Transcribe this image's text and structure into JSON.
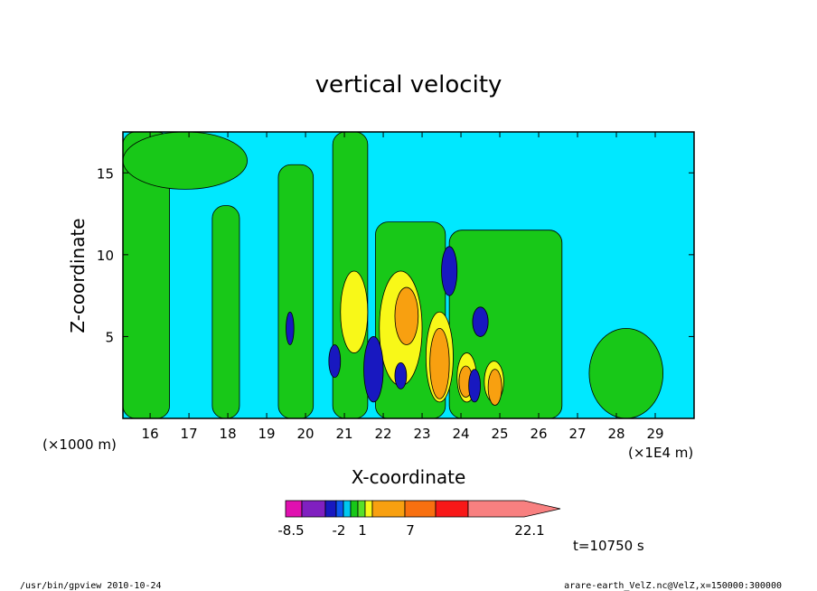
{
  "chart_data": {
    "type": "heatmap",
    "title": "vertical velocity",
    "xlabel": "X-coordinate",
    "ylabel": "Z-coordinate",
    "x_unit": "(×1E4 m)",
    "y_unit": "(×1000 m)",
    "xlim": [
      15.3,
      30.0
    ],
    "ylim": [
      0.0,
      17.5
    ],
    "x_ticks": [
      16,
      17,
      18,
      19,
      20,
      21,
      22,
      23,
      24,
      25,
      26,
      27,
      28,
      29
    ],
    "y_ticks": [
      5,
      10,
      15
    ],
    "grid": false,
    "colorbar": {
      "labels": [
        "-8.5",
        "-2",
        "1",
        "7",
        "22.1"
      ],
      "colors": [
        "#e010b0",
        "#8020c0",
        "#1818c0",
        "#0c58f0",
        "#00c8f0",
        "#18c818",
        "#58e028",
        "#f8f818",
        "#f8a010",
        "#f87010",
        "#f81818",
        "#f88080"
      ],
      "placement": "bottom"
    },
    "background_level_color": "#00e8ff",
    "regions": [
      {
        "level": "green",
        "shape": "band",
        "x": [
          15.3,
          16.5
        ],
        "y": [
          0.0,
          17.5
        ]
      },
      {
        "level": "green",
        "shape": "band",
        "x": [
          17.6,
          18.3
        ],
        "y": [
          0.0,
          13.0
        ]
      },
      {
        "level": "green",
        "shape": "band",
        "x": [
          19.3,
          20.2
        ],
        "y": [
          0.0,
          15.5
        ]
      },
      {
        "level": "green",
        "shape": "band",
        "x": [
          20.7,
          21.6
        ],
        "y": [
          0.0,
          17.5
        ]
      },
      {
        "level": "green",
        "shape": "band",
        "x": [
          21.8,
          23.6
        ],
        "y": [
          0.0,
          12.0
        ]
      },
      {
        "level": "green",
        "shape": "band",
        "x": [
          23.7,
          26.6
        ],
        "y": [
          0.0,
          11.5
        ]
      },
      {
        "level": "green",
        "shape": "blob",
        "x": [
          27.3,
          29.2
        ],
        "y": [
          0.0,
          5.5
        ]
      },
      {
        "level": "green",
        "shape": "blob",
        "x": [
          15.3,
          18.5
        ],
        "y": [
          14.0,
          17.5
        ]
      },
      {
        "level": "yellow",
        "shape": "blob",
        "x": [
          20.9,
          21.6
        ],
        "y": [
          4.0,
          9.0
        ]
      },
      {
        "level": "yellow",
        "shape": "blob",
        "x": [
          21.9,
          23.0
        ],
        "y": [
          2.0,
          9.0
        ]
      },
      {
        "level": "yellow",
        "shape": "blob",
        "x": [
          23.1,
          23.8
        ],
        "y": [
          1.0,
          6.5
        ]
      },
      {
        "level": "yellow",
        "shape": "blob",
        "x": [
          23.9,
          24.4
        ],
        "y": [
          1.0,
          4.0
        ]
      },
      {
        "level": "yellow",
        "shape": "blob",
        "x": [
          24.6,
          25.1
        ],
        "y": [
          1.0,
          3.5
        ]
      },
      {
        "level": "orange",
        "shape": "blob",
        "x": [
          22.3,
          22.9
        ],
        "y": [
          4.5,
          8.0
        ]
      },
      {
        "level": "orange",
        "shape": "blob",
        "x": [
          23.2,
          23.7
        ],
        "y": [
          1.2,
          5.5
        ]
      },
      {
        "level": "orange",
        "shape": "blob",
        "x": [
          23.95,
          24.3
        ],
        "y": [
          1.3,
          3.2
        ]
      },
      {
        "level": "orange",
        "shape": "blob",
        "x": [
          24.7,
          25.05
        ],
        "y": [
          0.8,
          3.0
        ]
      },
      {
        "level": "blue",
        "shape": "blob",
        "x": [
          23.5,
          23.9
        ],
        "y": [
          7.5,
          10.5
        ]
      },
      {
        "level": "blue",
        "shape": "blob",
        "x": [
          21.5,
          22.0
        ],
        "y": [
          1.0,
          5.0
        ]
      },
      {
        "level": "blue",
        "shape": "blob",
        "x": [
          20.6,
          20.9
        ],
        "y": [
          2.5,
          4.5
        ]
      },
      {
        "level": "blue",
        "shape": "blob",
        "x": [
          19.5,
          19.7
        ],
        "y": [
          4.5,
          6.5
        ]
      },
      {
        "level": "blue",
        "shape": "blob",
        "x": [
          24.3,
          24.7
        ],
        "y": [
          5.0,
          6.8
        ]
      },
      {
        "level": "blue",
        "shape": "blob",
        "x": [
          24.2,
          24.5
        ],
        "y": [
          1.0,
          3.0
        ]
      },
      {
        "level": "blue",
        "shape": "blob",
        "x": [
          22.3,
          22.6
        ],
        "y": [
          1.8,
          3.4
        ]
      }
    ],
    "annotation": "t=10750 s"
  },
  "footer": {
    "left": "/usr/bin/gpview  2010-10-24",
    "right": "arare-earth_VelZ.nc@VelZ,x=150000:300000"
  }
}
